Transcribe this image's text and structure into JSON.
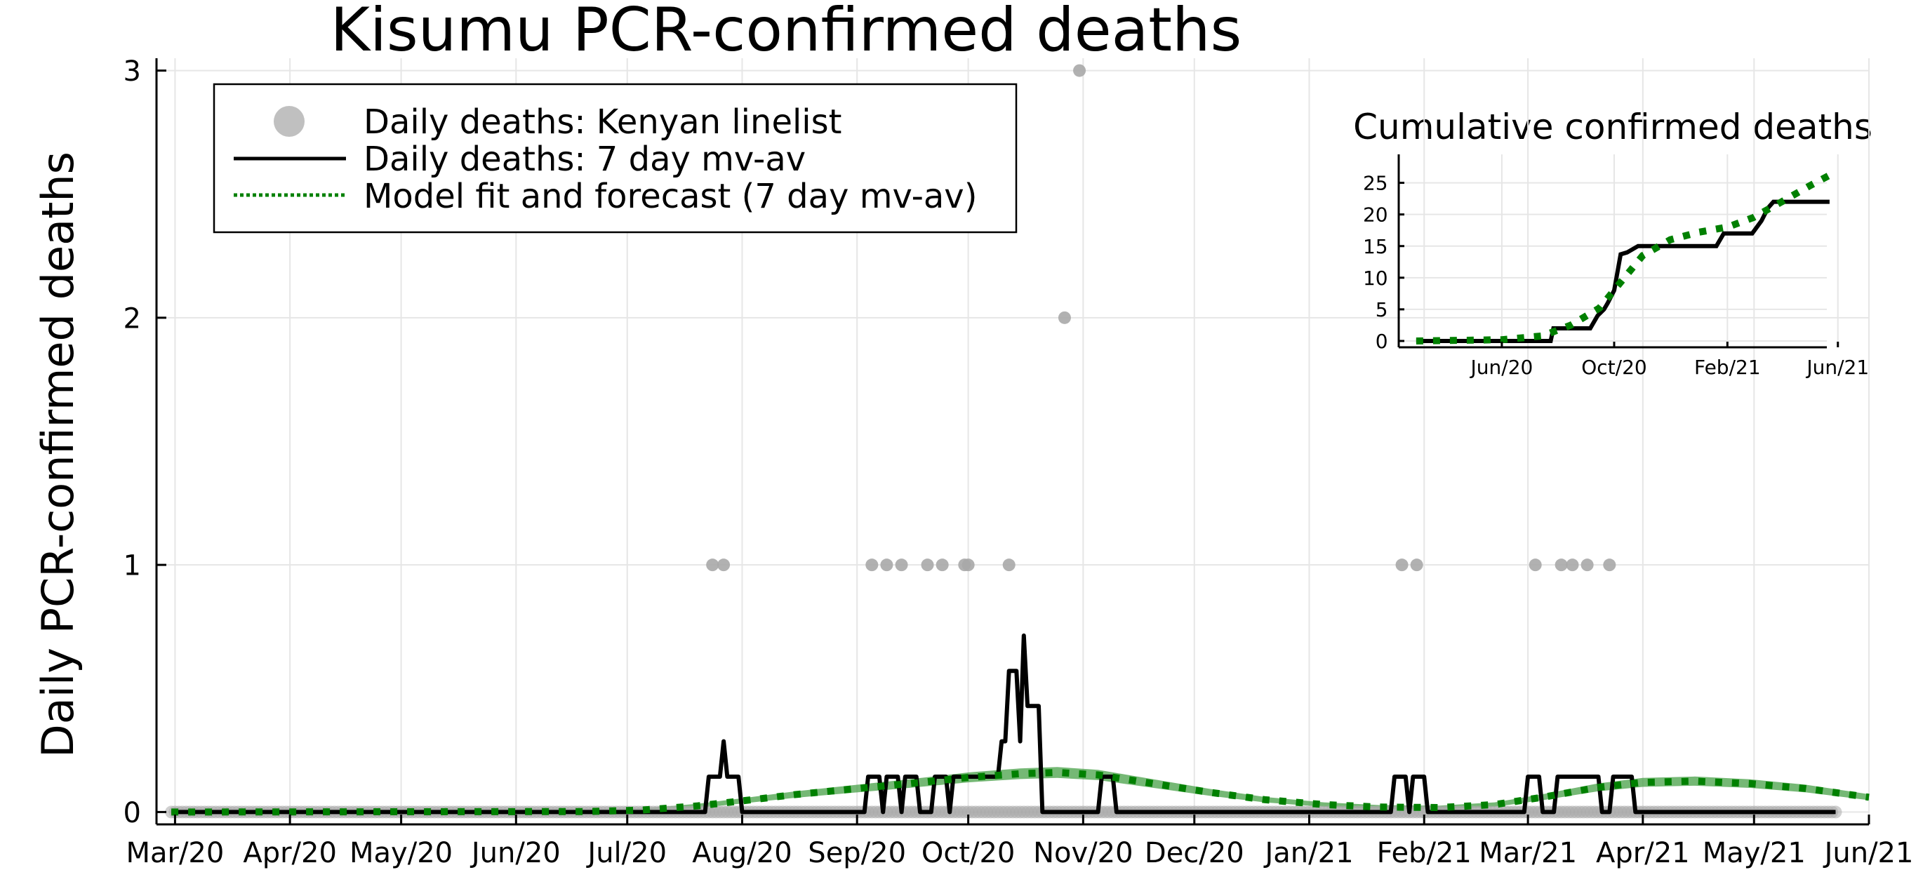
{
  "chart_data": [
    {
      "type": "line",
      "title": "Kisumu PCR-confirmed deaths",
      "xlabel": "",
      "ylabel": "Daily PCR-confirmed deaths",
      "xlim": [
        "2020-02-25",
        "2021-06-01"
      ],
      "ylim": [
        -0.05,
        3.05
      ],
      "y_ticks": [
        0,
        1,
        2,
        3
      ],
      "x_ticks": [
        {
          "date": "2020-03-01",
          "label": "Mar/20"
        },
        {
          "date": "2020-04-01",
          "label": "Apr/20"
        },
        {
          "date": "2020-05-01",
          "label": "May/20"
        },
        {
          "date": "2020-06-01",
          "label": "Jun/20"
        },
        {
          "date": "2020-07-01",
          "label": "Jul/20"
        },
        {
          "date": "2020-08-01",
          "label": "Aug/20"
        },
        {
          "date": "2020-09-01",
          "label": "Sep/20"
        },
        {
          "date": "2020-10-01",
          "label": "Oct/20"
        },
        {
          "date": "2020-11-01",
          "label": "Nov/20"
        },
        {
          "date": "2020-12-01",
          "label": "Dec/20"
        },
        {
          "date": "2021-01-01",
          "label": "Jan/21"
        },
        {
          "date": "2021-02-01",
          "label": "Feb/21"
        },
        {
          "date": "2021-03-01",
          "label": "Mar/21"
        },
        {
          "date": "2021-04-01",
          "label": "Apr/21"
        },
        {
          "date": "2021-05-01",
          "label": "May/21"
        },
        {
          "date": "2021-06-01",
          "label": "Jun/21"
        }
      ],
      "grid": true,
      "legend_position": "top-left",
      "legend": [
        {
          "label": "Daily deaths: Kenyan linelist",
          "symbol": "dot"
        },
        {
          "label": "Daily deaths: 7 day mv-av",
          "symbol": "line"
        },
        {
          "label": "Model fit and forecast (7 day mv-av)",
          "symbol": "dotted"
        }
      ],
      "series": [
        {
          "name": "Daily deaths: Kenyan linelist",
          "kind": "scatter",
          "color": "#a9a9a9",
          "zero_range": [
            "2020-02-29",
            "2021-05-23"
          ],
          "points": [
            {
              "x": "2020-07-24",
              "y": 1
            },
            {
              "x": "2020-07-27",
              "y": 1
            },
            {
              "x": "2020-09-05",
              "y": 1
            },
            {
              "x": "2020-09-09",
              "y": 1
            },
            {
              "x": "2020-09-13",
              "y": 1
            },
            {
              "x": "2020-09-20",
              "y": 1
            },
            {
              "x": "2020-09-24",
              "y": 1
            },
            {
              "x": "2020-09-30",
              "y": 1
            },
            {
              "x": "2020-10-01",
              "y": 1
            },
            {
              "x": "2020-10-12",
              "y": 1
            },
            {
              "x": "2020-10-27",
              "y": 2
            },
            {
              "x": "2020-10-31",
              "y": 3
            },
            {
              "x": "2021-01-26",
              "y": 1
            },
            {
              "x": "2021-01-30",
              "y": 1
            },
            {
              "x": "2021-03-03",
              "y": 1
            },
            {
              "x": "2021-03-10",
              "y": 1
            },
            {
              "x": "2021-03-13",
              "y": 1
            },
            {
              "x": "2021-03-17",
              "y": 1
            },
            {
              "x": "2021-03-23",
              "y": 1
            }
          ]
        },
        {
          "name": "Daily deaths: 7 day mv-av",
          "kind": "line",
          "color": "#000000",
          "points": [
            [
              "2020-02-29",
              0
            ],
            [
              "2020-07-22",
              0
            ],
            [
              "2020-07-23",
              0.143
            ],
            [
              "2020-07-26",
              0.143
            ],
            [
              "2020-07-27",
              0.286
            ],
            [
              "2020-07-28",
              0.143
            ],
            [
              "2020-07-31",
              0.143
            ],
            [
              "2020-08-01",
              0
            ],
            [
              "2020-09-03",
              0
            ],
            [
              "2020-09-04",
              0.143
            ],
            [
              "2020-09-07",
              0.143
            ],
            [
              "2020-09-08",
              0
            ],
            [
              "2020-09-09",
              0.143
            ],
            [
              "2020-09-12",
              0.143
            ],
            [
              "2020-09-13",
              0
            ],
            [
              "2020-09-14",
              0.143
            ],
            [
              "2020-09-17",
              0.143
            ],
            [
              "2020-09-18",
              0
            ],
            [
              "2020-09-21",
              0
            ],
            [
              "2020-09-22",
              0.143
            ],
            [
              "2020-09-25",
              0.143
            ],
            [
              "2020-09-26",
              0
            ],
            [
              "2020-09-27",
              0.143
            ],
            [
              "2020-10-04",
              0.143
            ],
            [
              "2020-10-09",
              0.143
            ],
            [
              "2020-10-10",
              0.286
            ],
            [
              "2020-10-11",
              0.286
            ],
            [
              "2020-10-12",
              0.571
            ],
            [
              "2020-10-14",
              0.571
            ],
            [
              "2020-10-15",
              0.286
            ],
            [
              "2020-10-16",
              0.714
            ],
            [
              "2020-10-17",
              0.429
            ],
            [
              "2020-10-20",
              0.429
            ],
            [
              "2020-10-21",
              0
            ],
            [
              "2020-11-05",
              0
            ],
            [
              "2020-11-06",
              0.143
            ],
            [
              "2020-11-09",
              0.143
            ],
            [
              "2020-11-10",
              0
            ],
            [
              "2021-01-23",
              0
            ],
            [
              "2021-01-24",
              0.143
            ],
            [
              "2021-01-27",
              0.143
            ],
            [
              "2021-01-28",
              0
            ],
            [
              "2021-01-29",
              0.143
            ],
            [
              "2021-02-01",
              0.143
            ],
            [
              "2021-02-02",
              0
            ],
            [
              "2021-02-28",
              0
            ],
            [
              "2021-03-01",
              0.143
            ],
            [
              "2021-03-04",
              0.143
            ],
            [
              "2021-03-05",
              0
            ],
            [
              "2021-03-08",
              0
            ],
            [
              "2021-03-09",
              0.143
            ],
            [
              "2021-03-20",
              0.143
            ],
            [
              "2021-03-21",
              0
            ],
            [
              "2021-03-23",
              0
            ],
            [
              "2021-03-24",
              0.143
            ],
            [
              "2021-03-29",
              0.143
            ],
            [
              "2021-03-30",
              0
            ],
            [
              "2021-05-23",
              0
            ]
          ]
        },
        {
          "name": "Model fit and forecast (7 day mv-av)",
          "kind": "dotted-line-with-band",
          "color": "#008000",
          "band_color": "#3a9a3a",
          "points": [
            [
              "2020-02-29",
              0
            ],
            [
              "2020-06-20",
              0.002
            ],
            [
              "2020-07-05",
              0.008
            ],
            [
              "2020-07-20",
              0.025
            ],
            [
              "2020-08-01",
              0.045
            ],
            [
              "2020-08-15",
              0.07
            ],
            [
              "2020-09-01",
              0.095
            ],
            [
              "2020-09-15",
              0.115
            ],
            [
              "2020-10-01",
              0.14
            ],
            [
              "2020-10-15",
              0.155
            ],
            [
              "2020-10-25",
              0.16
            ],
            [
              "2020-11-05",
              0.15
            ],
            [
              "2020-11-20",
              0.115
            ],
            [
              "2020-12-05",
              0.08
            ],
            [
              "2020-12-20",
              0.05
            ],
            [
              "2021-01-05",
              0.03
            ],
            [
              "2021-01-20",
              0.02
            ],
            [
              "2021-02-05",
              0.018
            ],
            [
              "2021-02-20",
              0.03
            ],
            [
              "2021-03-05",
              0.06
            ],
            [
              "2021-03-20",
              0.1
            ],
            [
              "2021-04-01",
              0.12
            ],
            [
              "2021-04-15",
              0.125
            ],
            [
              "2021-04-30",
              0.115
            ],
            [
              "2021-05-15",
              0.095
            ],
            [
              "2021-06-01",
              0.06
            ]
          ]
        }
      ]
    },
    {
      "type": "line",
      "title": "Cumulative confirmed deaths",
      "xlabel": "",
      "ylabel": "",
      "xlim": [
        "2020-02-10",
        "2021-05-20"
      ],
      "ylim": [
        -1,
        29.5
      ],
      "y_ticks": [
        0,
        5,
        10,
        15,
        20,
        25
      ],
      "x_ticks": [
        {
          "date": "2020-06-01",
          "label": "Jun/20"
        },
        {
          "date": "2020-10-01",
          "label": "Oct/20"
        },
        {
          "date": "2021-02-01",
          "label": "Feb/21"
        },
        {
          "date": "2021-06-01",
          "label": "Jun/21"
        }
      ],
      "grid": true,
      "series": [
        {
          "name": "Cumulative confirmed deaths",
          "kind": "line",
          "color": "#000000",
          "points": [
            [
              "2020-02-29",
              0
            ],
            [
              "2020-07-24",
              0
            ],
            [
              "2020-07-27",
              2
            ],
            [
              "2020-09-05",
              2
            ],
            [
              "2020-09-13",
              4
            ],
            [
              "2020-09-20",
              5
            ],
            [
              "2020-09-24",
              6
            ],
            [
              "2020-10-01",
              8
            ],
            [
              "2020-10-08",
              13.7
            ],
            [
              "2020-10-15",
              14
            ],
            [
              "2020-10-27",
              15
            ],
            [
              "2020-11-10",
              15
            ],
            [
              "2021-01-20",
              15
            ],
            [
              "2021-01-28",
              17
            ],
            [
              "2021-02-28",
              17
            ],
            [
              "2021-03-10",
              19
            ],
            [
              "2021-03-17",
              21
            ],
            [
              "2021-03-23",
              22
            ],
            [
              "2021-05-23",
              22
            ]
          ]
        },
        {
          "name": "Model fit and forecast",
          "kind": "dotted-line",
          "color": "#008000",
          "points": [
            [
              "2020-02-29",
              0
            ],
            [
              "2020-06-01",
              0.2
            ],
            [
              "2020-07-15",
              0.8
            ],
            [
              "2020-08-15",
              2.5
            ],
            [
              "2020-09-15",
              5.2
            ],
            [
              "2020-10-15",
              10.5
            ],
            [
              "2020-11-01",
              13.5
            ],
            [
              "2020-12-01",
              16
            ],
            [
              "2021-01-01",
              17.2
            ],
            [
              "2021-02-01",
              18
            ],
            [
              "2021-03-01",
              19.5
            ],
            [
              "2021-04-01",
              22
            ],
            [
              "2021-05-01",
              24.5
            ],
            [
              "2021-05-23",
              26.2
            ]
          ]
        }
      ]
    }
  ]
}
